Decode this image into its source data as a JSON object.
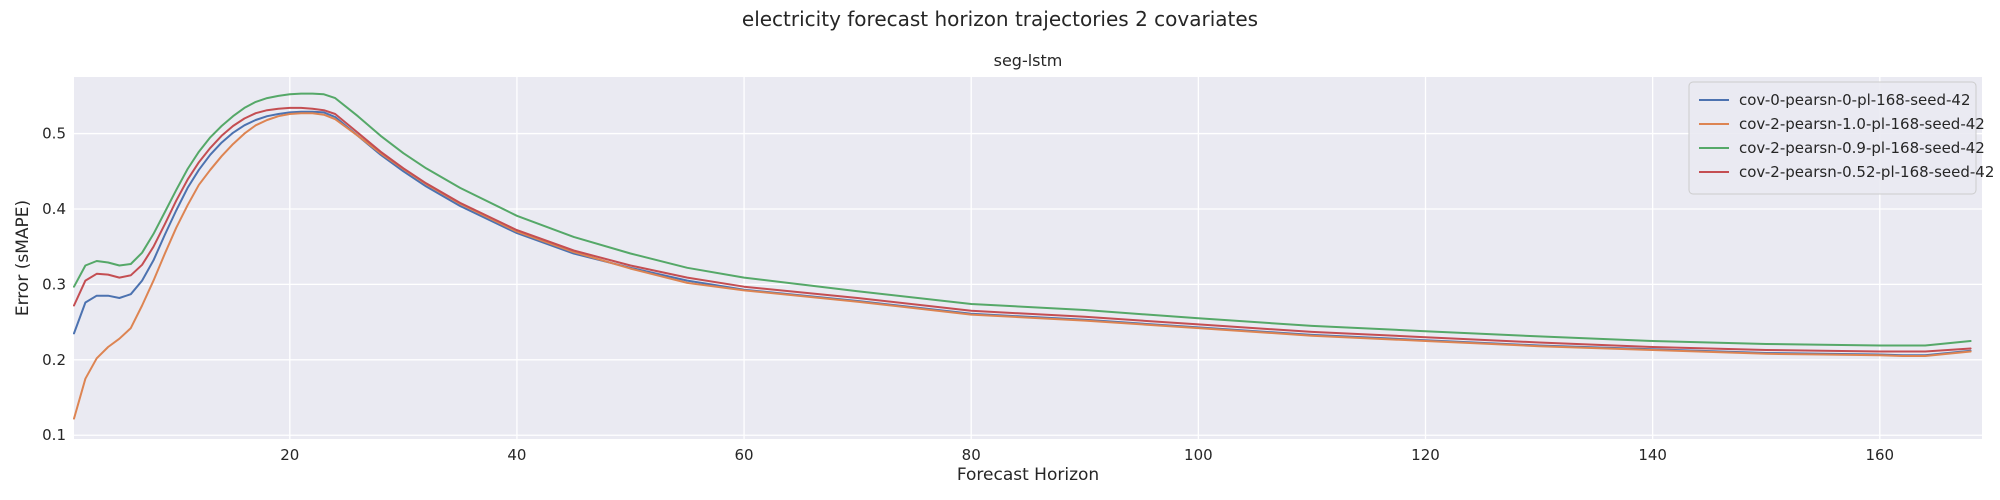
{
  "chart_data": {
    "type": "line",
    "suptitle": "electricity forecast horizon trajectories 2 covariates",
    "title": "seg-lstm",
    "xlabel": "Forecast Horizon",
    "ylabel": "Error (sMAPE)",
    "xlim": [
      1,
      169
    ],
    "ylim": [
      0.095,
      0.575
    ],
    "xticks": [
      20,
      40,
      60,
      80,
      100,
      120,
      140,
      160
    ],
    "yticks": [
      0.1,
      0.2,
      0.3,
      0.4,
      0.5
    ],
    "xtick_labels": [
      "20",
      "40",
      "60",
      "80",
      "100",
      "120",
      "140",
      "160"
    ],
    "ytick_labels": [
      "0.1",
      "0.2",
      "0.3",
      "0.4",
      "0.5"
    ],
    "grid": true,
    "legend_position": "top-right",
    "x": [
      1,
      2,
      3,
      4,
      5,
      6,
      7,
      8,
      9,
      10,
      11,
      12,
      13,
      14,
      15,
      16,
      17,
      18,
      19,
      20,
      21,
      22,
      23,
      24,
      26,
      28,
      30,
      32,
      35,
      40,
      45,
      50,
      55,
      60,
      70,
      80,
      90,
      100,
      110,
      120,
      130,
      140,
      150,
      155,
      160,
      162,
      164,
      166,
      168
    ],
    "series": [
      {
        "name": "cov-0-pearsn-0-pl-168-seed-42",
        "color": "#4c72b0",
        "values": [
          0.235,
          0.276,
          0.285,
          0.285,
          0.282,
          0.287,
          0.305,
          0.332,
          0.366,
          0.398,
          0.428,
          0.452,
          0.472,
          0.488,
          0.501,
          0.511,
          0.518,
          0.523,
          0.526,
          0.528,
          0.529,
          0.529,
          0.528,
          0.522,
          0.497,
          0.472,
          0.45,
          0.43,
          0.404,
          0.368,
          0.341,
          0.322,
          0.305,
          0.293,
          0.278,
          0.261,
          0.253,
          0.243,
          0.233,
          0.226,
          0.219,
          0.214,
          0.209,
          0.208,
          0.207,
          0.206,
          0.206,
          0.209,
          0.212
        ]
      },
      {
        "name": "cov-2-pearsn-1.0-pl-168-seed-42",
        "color": "#dd8452",
        "values": [
          0.122,
          0.175,
          0.202,
          0.217,
          0.228,
          0.242,
          0.272,
          0.305,
          0.341,
          0.375,
          0.405,
          0.432,
          0.452,
          0.47,
          0.486,
          0.5,
          0.511,
          0.518,
          0.523,
          0.526,
          0.527,
          0.527,
          0.525,
          0.519,
          0.497,
          0.474,
          0.453,
          0.433,
          0.407,
          0.37,
          0.343,
          0.321,
          0.302,
          0.292,
          0.277,
          0.26,
          0.252,
          0.242,
          0.232,
          0.225,
          0.218,
          0.213,
          0.208,
          0.207,
          0.206,
          0.205,
          0.205,
          0.208,
          0.211
        ]
      },
      {
        "name": "cov-2-pearsn-0.9-pl-168-seed-42",
        "color": "#55a868",
        "values": [
          0.297,
          0.325,
          0.331,
          0.329,
          0.325,
          0.327,
          0.342,
          0.367,
          0.396,
          0.425,
          0.453,
          0.476,
          0.495,
          0.51,
          0.523,
          0.534,
          0.542,
          0.547,
          0.55,
          0.552,
          0.553,
          0.553,
          0.552,
          0.547,
          0.523,
          0.497,
          0.474,
          0.454,
          0.428,
          0.391,
          0.363,
          0.341,
          0.322,
          0.309,
          0.291,
          0.274,
          0.266,
          0.255,
          0.245,
          0.238,
          0.231,
          0.225,
          0.221,
          0.22,
          0.219,
          0.219,
          0.219,
          0.222,
          0.225
        ]
      },
      {
        "name": "cov-2-pearsn-0.52-pl-168-seed-42",
        "color": "#c44e52",
        "values": [
          0.272,
          0.305,
          0.314,
          0.313,
          0.309,
          0.312,
          0.326,
          0.35,
          0.38,
          0.411,
          0.439,
          0.462,
          0.481,
          0.497,
          0.51,
          0.52,
          0.527,
          0.531,
          0.533,
          0.534,
          0.534,
          0.533,
          0.531,
          0.526,
          0.501,
          0.476,
          0.454,
          0.434,
          0.408,
          0.372,
          0.345,
          0.325,
          0.309,
          0.297,
          0.282,
          0.265,
          0.257,
          0.247,
          0.237,
          0.23,
          0.223,
          0.217,
          0.213,
          0.212,
          0.211,
          0.211,
          0.211,
          0.213,
          0.215
        ]
      }
    ]
  }
}
